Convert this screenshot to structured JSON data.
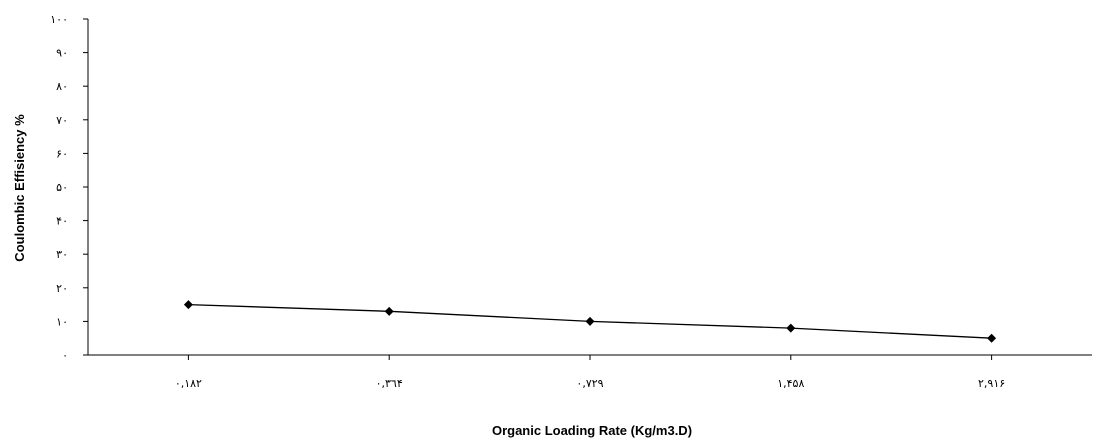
{
  "chart_data": {
    "type": "line",
    "title": "",
    "xlabel": "Organic Loading Rate (Kg/m3.D)",
    "ylabel": "Coulombic Effisiency %",
    "categories": [
      "٠,١٨٢",
      "٠,٣٦۴",
      "٠,٧٢٩",
      "١,۴۵٨",
      "٢,٩١۶"
    ],
    "x_values": [
      0.182,
      0.364,
      0.729,
      1.458,
      2.916
    ],
    "series": [
      {
        "values": [
          15,
          13,
          10,
          8,
          5
        ],
        "color": "#000000",
        "marker": "diamond"
      }
    ],
    "ylim": [
      0,
      100
    ],
    "yticks": [
      0,
      10,
      20,
      30,
      40,
      50,
      60,
      70,
      80,
      90,
      100
    ],
    "ytick_labels": [
      "٠",
      "١٠",
      "٢٠",
      "٣٠",
      "۴٠",
      "۵٠",
      "۶٠",
      "٧٠",
      "٨٠",
      "٩٠",
      "١٠٠"
    ],
    "grid": false,
    "legend": "none"
  }
}
